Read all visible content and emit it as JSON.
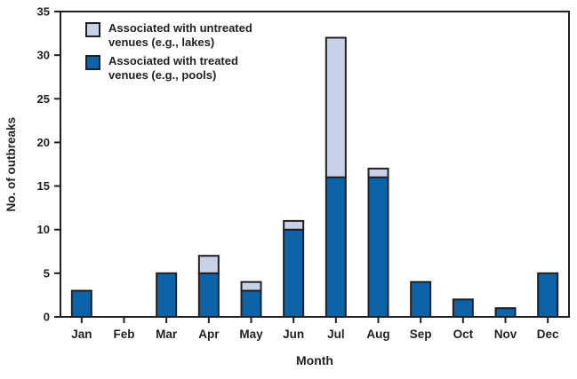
{
  "chart_data": {
    "type": "bar",
    "stacked": true,
    "title": "",
    "xlabel": "Month",
    "ylabel": "No. of outbreaks",
    "categories": [
      "Jan",
      "Feb",
      "Mar",
      "Apr",
      "May",
      "Jun",
      "Jul",
      "Aug",
      "Sep",
      "Oct",
      "Nov",
      "Dec"
    ],
    "series": [
      {
        "name": "Associated with treated venues (e.g., pools)",
        "color": "#0d63a7",
        "values": [
          3,
          0,
          5,
          5,
          3,
          10,
          16,
          16,
          4,
          2,
          1,
          5
        ]
      },
      {
        "name": "Associated with untreated venues (e.g., lakes)",
        "color": "#c7d1e8",
        "values": [
          0,
          0,
          0,
          2,
          1,
          1,
          16,
          1,
          0,
          0,
          0,
          0
        ]
      }
    ],
    "totals": [
      3,
      0,
      5,
      7,
      4,
      11,
      32,
      17,
      4,
      2,
      1,
      5
    ],
    "ylim": [
      0,
      35
    ],
    "yticks": [
      0,
      5,
      10,
      15,
      20,
      25,
      30,
      35
    ],
    "grid": false,
    "legend_position": "top-left-inside",
    "legend": [
      {
        "line1": "Associated with untreated",
        "line2": "venues (e.g., lakes)",
        "color": "#c7d1e8"
      },
      {
        "line1": "Associated with treated",
        "line2": "venues (e.g., pools)",
        "color": "#0d63a7"
      }
    ],
    "axis_color": "#231f20",
    "bar_border_color": "#231f20"
  }
}
